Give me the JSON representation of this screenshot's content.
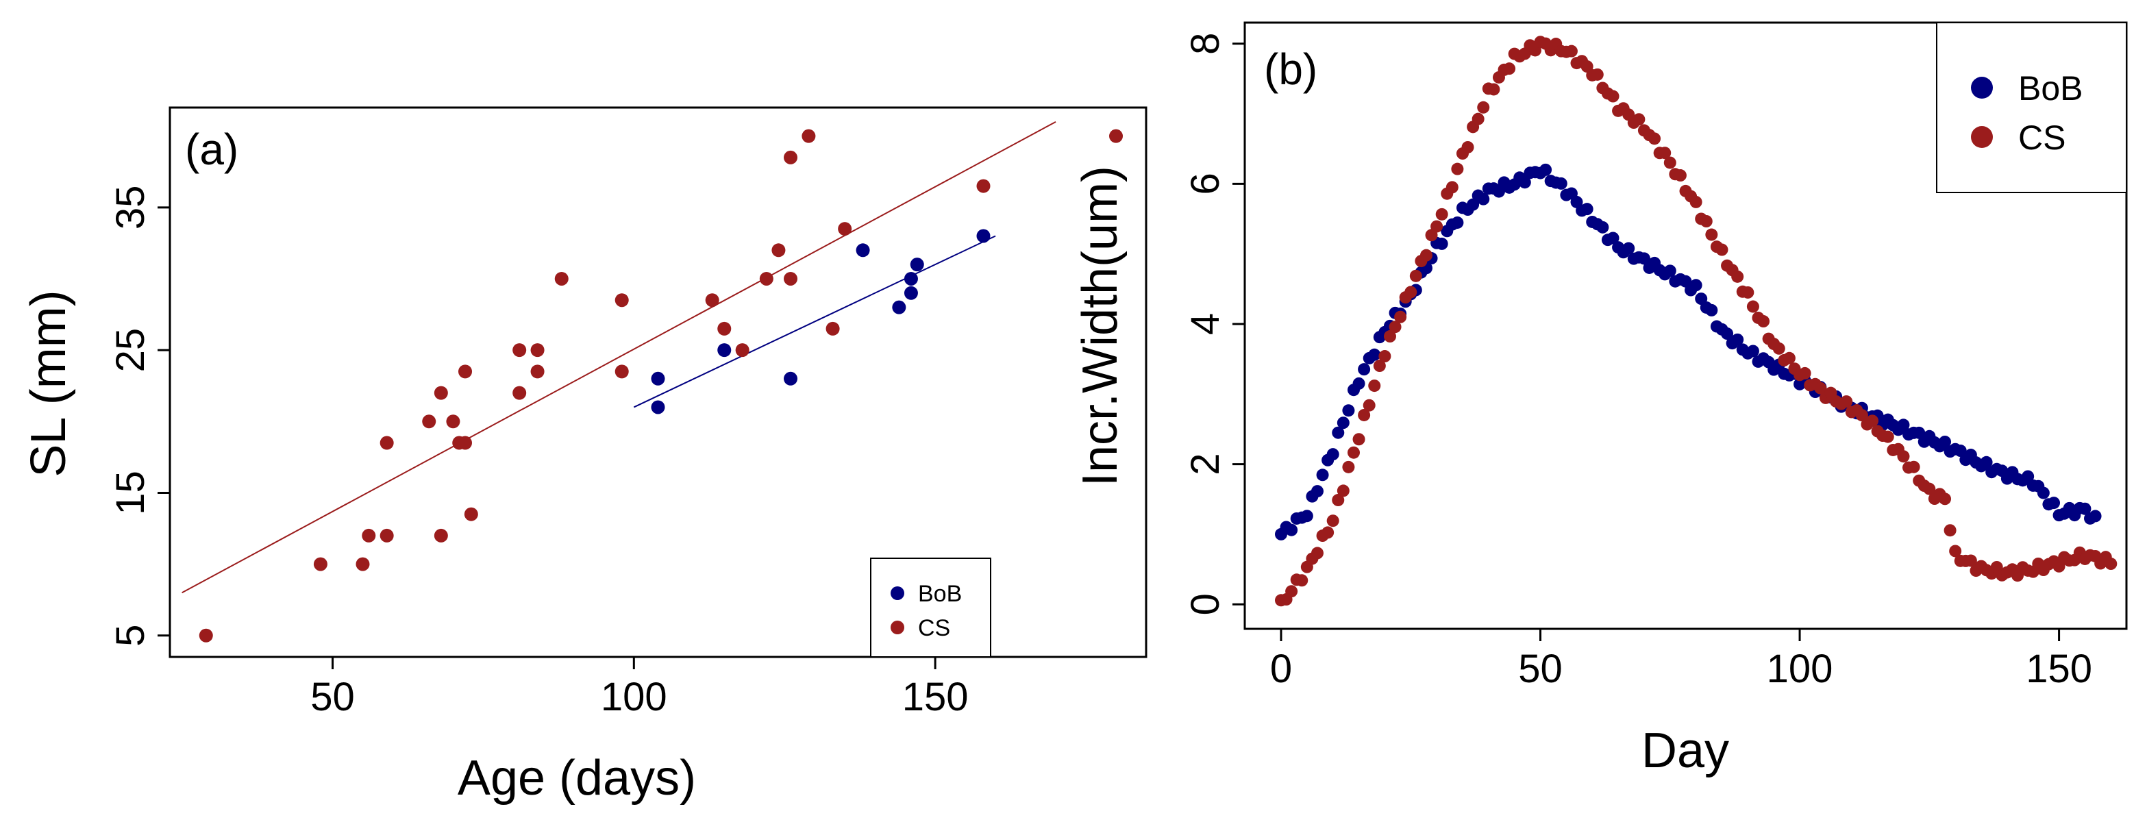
{
  "chart_data": [
    {
      "type": "scatter",
      "panel_label": "(a)",
      "xlabel": "Age (days)",
      "ylabel": "SL (mm)",
      "xlim": [
        23,
        185
      ],
      "ylim": [
        3.5,
        42
      ],
      "xticks": [
        50,
        100,
        150
      ],
      "yticks": [
        5,
        15,
        25,
        35
      ],
      "xtick_labels": [
        "50",
        "100",
        "150"
      ],
      "ytick_labels": [
        "5",
        "15",
        "25",
        "35"
      ],
      "legend_position": "bottom-right",
      "series": [
        {
          "name": "BoB",
          "color": "#000080",
          "x": [
            104,
            104,
            115,
            126,
            138,
            144,
            146,
            146,
            147,
            158
          ],
          "y": [
            23,
            21,
            25,
            23,
            32,
            28,
            29,
            30,
            31,
            33
          ],
          "fit": {
            "x": [
              100,
              160
            ],
            "y": [
              21,
              33
            ]
          }
        },
        {
          "name": "CS",
          "color": "#9B1C1C",
          "x": [
            29,
            48,
            55,
            56,
            59,
            59,
            66,
            68,
            68,
            70,
            71,
            72,
            72,
            73,
            81,
            81,
            84,
            84,
            88,
            98,
            98,
            113,
            115,
            118,
            122,
            124,
            126,
            126,
            129,
            133,
            135,
            158,
            180
          ],
          "y": [
            5,
            10,
            10,
            12,
            12,
            18.5,
            20,
            12,
            22,
            20,
            18.5,
            18.5,
            23.5,
            13.5,
            25,
            22,
            25,
            23.5,
            30,
            28.5,
            23.5,
            28.5,
            26.5,
            25,
            30,
            32,
            30,
            38.5,
            40,
            26.5,
            33.5,
            36.5,
            40
          ],
          "fit": {
            "x": [
              25,
              170
            ],
            "y": [
              8,
              41
            ]
          }
        }
      ]
    },
    {
      "type": "scatter",
      "panel_label": "(b)",
      "xlabel": "Day",
      "ylabel": "Incr.Width(um)",
      "xlim": [
        -7,
        163
      ],
      "ylim": [
        -0.35,
        8.3
      ],
      "xticks": [
        0,
        50,
        100,
        150
      ],
      "yticks": [
        0,
        2,
        4,
        6,
        8
      ],
      "xtick_labels": [
        "0",
        "50",
        "100",
        "150"
      ],
      "ytick_labels": [
        "0",
        "2",
        "4",
        "6",
        "8"
      ],
      "legend_position": "top-right",
      "series": [
        {
          "name": "BoB",
          "color": "#000080",
          "curve_x": [
            0,
            5,
            10,
            15,
            20,
            25,
            30,
            35,
            40,
            45,
            50,
            55,
            60,
            65,
            70,
            75,
            80,
            85,
            90,
            95,
            100,
            105,
            110,
            115,
            120,
            125,
            130,
            135,
            140,
            145,
            150,
            155,
            157
          ],
          "curve_y": [
            1.0,
            1.3,
            2.2,
            3.2,
            3.9,
            4.4,
            5.1,
            5.6,
            5.9,
            6.0,
            6.2,
            5.9,
            5.5,
            5.1,
            4.9,
            4.7,
            4.5,
            3.9,
            3.6,
            3.4,
            3.2,
            3.0,
            2.8,
            2.65,
            2.5,
            2.35,
            2.2,
            2.0,
            1.85,
            1.75,
            1.3,
            1.35,
            1.2
          ],
          "points": 158
        },
        {
          "name": "CS",
          "color": "#9B1C1C",
          "curve_x": [
            0,
            5,
            10,
            15,
            20,
            25,
            30,
            35,
            40,
            45,
            50,
            55,
            60,
            65,
            70,
            75,
            80,
            85,
            90,
            95,
            100,
            105,
            110,
            115,
            120,
            125,
            128,
            130,
            135,
            140,
            145,
            150,
            155,
            160
          ],
          "curve_y": [
            0.0,
            0.5,
            1.2,
            2.4,
            3.6,
            4.5,
            5.4,
            6.4,
            7.3,
            7.8,
            8.0,
            7.9,
            7.6,
            7.1,
            6.8,
            6.3,
            5.7,
            5.0,
            4.4,
            3.7,
            3.3,
            3.0,
            2.8,
            2.5,
            2.1,
            1.6,
            1.5,
            0.7,
            0.5,
            0.45,
            0.5,
            0.6,
            0.7,
            0.6
          ],
          "points": 161
        }
      ]
    }
  ]
}
